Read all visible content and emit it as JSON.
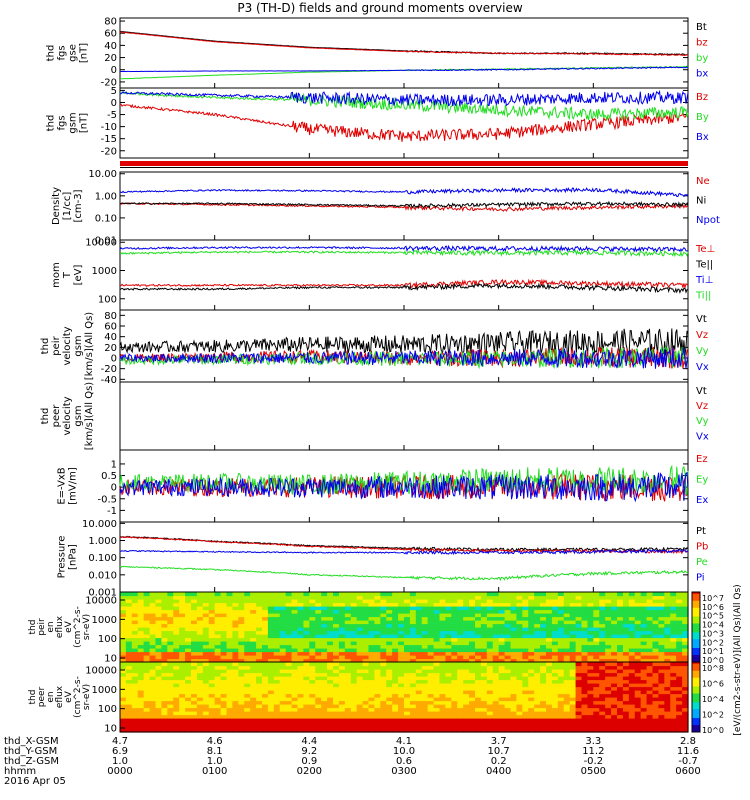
{
  "title": "P3 (TH-D) fields and ground moments overview",
  "colors": {
    "black": "#000000",
    "red": "#e00000",
    "green": "#22dd22",
    "blue": "#0000ee"
  },
  "chart_data": {
    "type": "line",
    "x": [
      "0000",
      "0100",
      "0200",
      "0300",
      "0400",
      "0500",
      "0600"
    ],
    "panels": [
      {
        "id": "fgs-gse",
        "ylabel": [
          "thd",
          "fgs",
          "gse",
          "[nT]"
        ],
        "ticks": [
          "80",
          "60",
          "40",
          "20",
          "0",
          "-20"
        ],
        "ylim": [
          -30,
          85
        ],
        "series": [
          {
            "name": "Bt",
            "color": "#000000",
            "values": [
              63,
              47,
              37,
              31,
              27,
              27,
              25
            ]
          },
          {
            "name": "bz",
            "color": "#e00000",
            "values": [
              62,
              46,
              36,
              30,
              27,
              26,
              24
            ]
          },
          {
            "name": "by",
            "color": "#22dd22",
            "values": [
              -15,
              -9,
              -4,
              -1,
              1,
              3,
              5
            ]
          },
          {
            "name": "bx",
            "color": "#0000ee",
            "values": [
              -3,
              -2,
              -2,
              -1,
              0,
              2,
              4
            ]
          }
        ]
      },
      {
        "id": "fgs-gsm",
        "ylabel": [
          "thd",
          "fgs",
          "gsm",
          "[nT]"
        ],
        "ticks": [
          "5",
          "0",
          "-5",
          "-10",
          "-15",
          "-20"
        ],
        "ylim": [
          -23,
          6
        ],
        "series": [
          {
            "name": "Bz",
            "color": "#e00000",
            "values": [
              -1,
              -5,
              -11,
              -14,
              -13,
              -9,
              -6
            ]
          },
          {
            "name": "By",
            "color": "#22dd22",
            "values": [
              4,
              2,
              1,
              -1,
              -3,
              -5,
              -4
            ]
          },
          {
            "name": "Bx",
            "color": "#0000ee",
            "values": [
              4,
              3,
              2,
              1,
              1,
              2,
              2
            ]
          }
        ]
      },
      {
        "id": "density",
        "ylabel": [
          "Density",
          "[1/cc]",
          "[cm-3]"
        ],
        "ticks": [
          "10.00",
          "1.00",
          "0.10",
          "0.01"
        ],
        "log": true,
        "ylim": [
          0.01,
          12
        ],
        "series": [
          {
            "name": "Ne",
            "color": "#e00000",
            "values": [
              0.45,
              0.4,
              0.35,
              0.3,
              0.25,
              0.3,
              0.35
            ]
          },
          {
            "name": "Ni",
            "color": "#000000",
            "values": [
              0.45,
              0.45,
              0.4,
              0.35,
              0.4,
              0.45,
              0.4
            ]
          },
          {
            "name": "Npot",
            "color": "#0000ee",
            "values": [
              1.5,
              1.8,
              1.7,
              1.5,
              1.8,
              1.9,
              1.0
            ]
          }
        ]
      },
      {
        "id": "mom-temp",
        "ylabel": [
          "mom",
          "T",
          "[eV]"
        ],
        "ticks": [
          "10000",
          "1000",
          "100"
        ],
        "log": true,
        "ylim": [
          40,
          12000
        ],
        "series": [
          {
            "name": "Te⊥",
            "color": "#e00000",
            "values": [
              300,
              300,
              300,
              300,
              400,
              350,
              300
            ]
          },
          {
            "name": "Te||",
            "color": "#000000",
            "values": [
              220,
              220,
              250,
              250,
              300,
              250,
              200
            ]
          },
          {
            "name": "Ti⊥",
            "color": "#0000ee",
            "values": [
              6000,
              6500,
              6500,
              6200,
              6000,
              6000,
              5500
            ]
          },
          {
            "name": "Ti||",
            "color": "#22dd22",
            "values": [
              4000,
              4500,
              4500,
              4300,
              4200,
              4300,
              4000
            ]
          }
        ]
      },
      {
        "id": "peir-velocity",
        "ylabel": [
          "thd",
          "peir",
          "velocity",
          "gsm",
          "[km/s](All Qs)"
        ],
        "ticks": [
          "80",
          "60",
          "40",
          "20",
          "0",
          "-20",
          "-40"
        ],
        "ylim": [
          -45,
          90
        ],
        "series": [
          {
            "name": "Vt",
            "color": "#000000",
            "values": [
              20,
              22,
              25,
              25,
              28,
              30,
              30
            ]
          },
          {
            "name": "Vz",
            "color": "#e00000",
            "values": [
              0,
              2,
              3,
              0,
              0,
              2,
              0
            ]
          },
          {
            "name": "Vy",
            "color": "#22dd22",
            "values": [
              -5,
              -3,
              0,
              -2,
              -2,
              0,
              2
            ]
          },
          {
            "name": "Vx",
            "color": "#0000ee",
            "values": [
              0,
              0,
              0,
              0,
              0,
              0,
              0
            ]
          }
        ]
      },
      {
        "id": "peer-velocity",
        "ylabel": [
          "thd",
          "peer",
          "velocity",
          "gsm",
          "[km/s](All Qs)"
        ],
        "ticks": [],
        "ylim": [
          0,
          1
        ],
        "series": [
          {
            "name": "Vt",
            "color": "#000000",
            "values": []
          },
          {
            "name": "Vz",
            "color": "#e00000",
            "values": []
          },
          {
            "name": "Vy",
            "color": "#22dd22",
            "values": []
          },
          {
            "name": "Vx",
            "color": "#0000ee",
            "values": []
          }
        ]
      },
      {
        "id": "efield",
        "ylabel": [
          "E=-VxB",
          "[mV/m]"
        ],
        "ticks": [
          "1",
          "0.5",
          "0",
          "-0.5",
          "-1"
        ],
        "ylim": [
          -1.5,
          1.6
        ],
        "series": [
          {
            "name": "Ez",
            "color": "#e00000",
            "values": [
              0,
              0,
              0,
              0,
              0,
              0,
              0
            ]
          },
          {
            "name": "Ey",
            "color": "#22dd22",
            "values": [
              0.2,
              0.2,
              0.1,
              0.2,
              0.3,
              0.3,
              0.3
            ]
          },
          {
            "name": "Ex",
            "color": "#0000ee",
            "values": [
              0,
              0,
              0,
              0,
              0,
              0,
              0
            ]
          }
        ]
      },
      {
        "id": "pressure",
        "ylabel": [
          "Pressure",
          "[nPa]"
        ],
        "ticks": [
          "10.000",
          "1.000",
          "0.100",
          "0.010",
          "0.001"
        ],
        "log": true,
        "ylim": [
          0.001,
          12
        ],
        "series": [
          {
            "name": "Pt",
            "color": "#000000",
            "values": [
              1.7,
              0.9,
              0.5,
              0.35,
              0.3,
              0.3,
              0.32
            ]
          },
          {
            "name": "Pb",
            "color": "#e00000",
            "values": [
              1.6,
              0.85,
              0.45,
              0.3,
              0.25,
              0.25,
              0.22
            ]
          },
          {
            "name": "Pe",
            "color": "#22dd22",
            "values": [
              0.03,
              0.02,
              0.01,
              0.007,
              0.006,
              0.012,
              0.015
            ]
          },
          {
            "name": "Pi",
            "color": "#0000ee",
            "values": [
              0.25,
              0.22,
              0.2,
              0.2,
              0.2,
              0.22,
              0.25
            ]
          }
        ]
      }
    ],
    "spectrograms": [
      {
        "id": "peir-en-eflux",
        "ylabel": [
          "thd",
          "peir",
          "en",
          "eflux",
          "eV",
          "(cm^2-s-",
          "sr-eV)"
        ],
        "ticks": [
          "10000",
          "1000",
          "100",
          "10"
        ],
        "colorbar_ticks": [
          "10^7",
          "10^6",
          "10^5",
          "10^4",
          "10^3",
          "10^2",
          "10^1",
          "10^0"
        ]
      },
      {
        "id": "peer-en-eflux",
        "ylabel": [
          "thd",
          "peer",
          "en",
          "eflux",
          "eV",
          "(cm^2-s-",
          "sr-eV)"
        ],
        "ticks": [
          "10000",
          "1000",
          "100",
          "10"
        ],
        "colorbar_ticks": [
          "10^8",
          "10^6",
          "10^4",
          "10^2",
          "10^0"
        ]
      }
    ],
    "colorbar_label": "[eV/(cm2-s-str-eV)](All Qs)(All Qs)",
    "footer": {
      "rows": [
        {
          "label": "thd_X-GSM",
          "values": [
            "4.7",
            "4.6",
            "4.4",
            "4.1",
            "3.7",
            "3.3",
            "2.8"
          ]
        },
        {
          "label": "thd_Y-GSM",
          "values": [
            "6.9",
            "8.1",
            "9.2",
            "10.0",
            "10.7",
            "11.2",
            "11.6"
          ]
        },
        {
          "label": "thd_Z-GSM",
          "values": [
            "1.0",
            "1.0",
            "0.9",
            "0.6",
            "0.2",
            "-0.2",
            "-0.7"
          ]
        },
        {
          "label": "hhmm",
          "values": [
            "0000",
            "0100",
            "0200",
            "0300",
            "0400",
            "0500",
            "0600"
          ]
        }
      ],
      "date": "2016 Apr 05"
    }
  }
}
